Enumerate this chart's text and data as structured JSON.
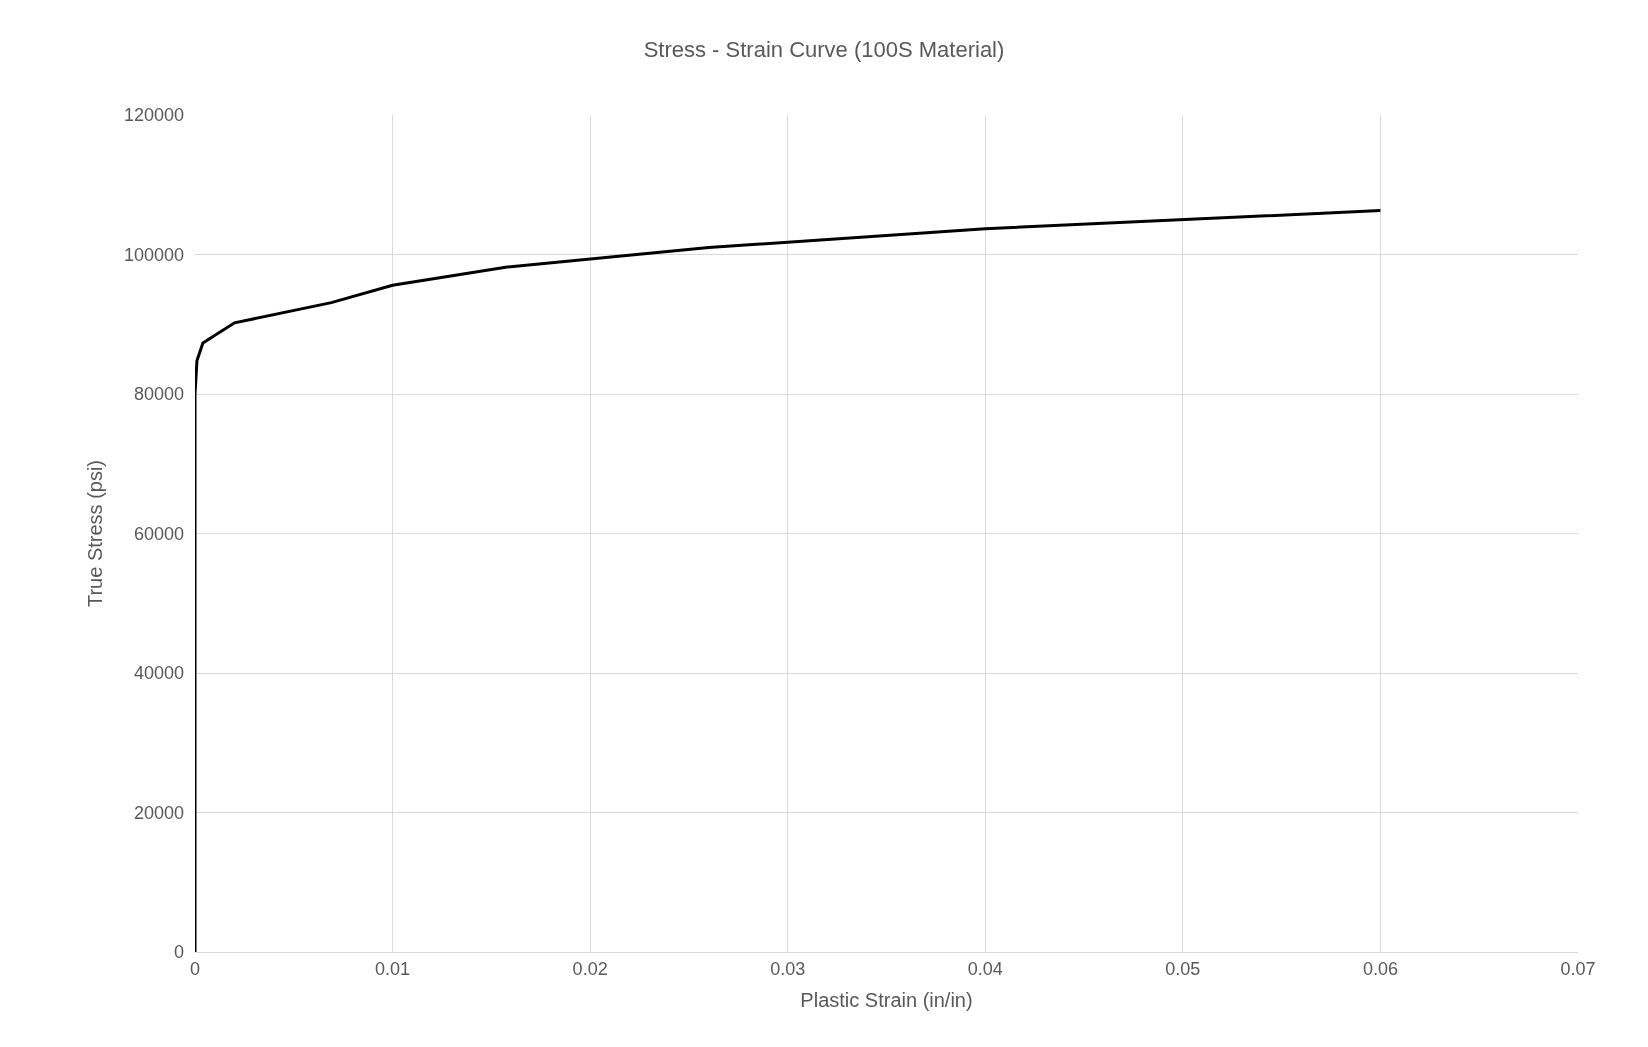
{
  "chart_data": {
    "type": "line",
    "title": "Stress - Strain Curve (100S Material)",
    "xlabel": "Plastic Strain (in/in)",
    "ylabel": "True Stress (psi)",
    "series": [
      {
        "color": "#000000",
        "x": [
          0,
          0,
          0.0001,
          0.0004,
          0.002,
          0.0069,
          0.01,
          0.0158,
          0.026,
          0.04,
          0.06
        ],
        "values": [
          0,
          80000,
          84800,
          87300,
          90200,
          93100,
          95600,
          98200,
          101000,
          103700,
          106300
        ]
      }
    ],
    "xlim": [
      0,
      0.07
    ],
    "xticks": [
      0,
      0.01,
      0.02,
      0.03,
      0.04,
      0.05,
      0.06,
      0.07
    ],
    "ylim": [
      0,
      120000
    ],
    "yticks": [
      0,
      20000,
      40000,
      60000,
      80000,
      100000,
      120000
    ],
    "grid": true,
    "marker": "none",
    "line_style": "solid"
  }
}
